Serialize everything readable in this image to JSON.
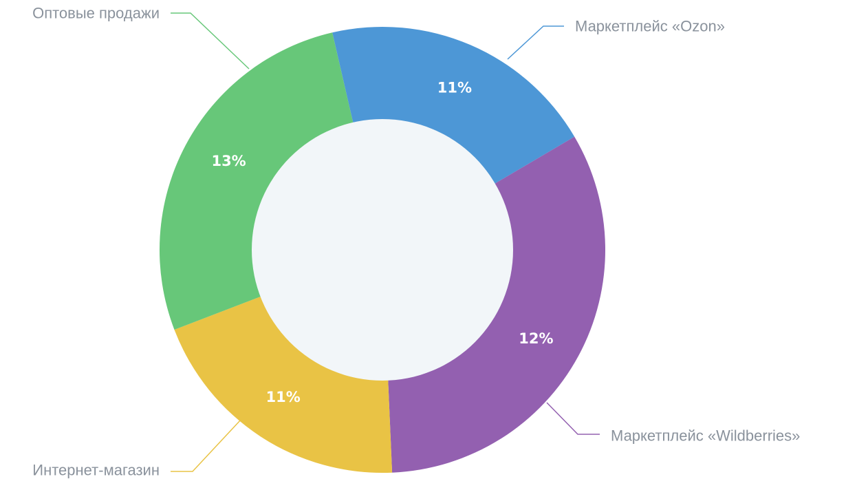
{
  "chart_data": {
    "type": "pie",
    "variant": "donut",
    "slices": [
      {
        "name": "Маркетплейс «Ozon»",
        "label": "11%",
        "value": 11,
        "color": "#4d97d6"
      },
      {
        "name": "Маркетплейс «Wildberries»",
        "label": "12%",
        "value": 12,
        "color": "#9360b0"
      },
      {
        "name": "Интернет-магазин",
        "label": "11%",
        "value": 11,
        "color": "#e9c345"
      },
      {
        "name": "Оптовые продажи",
        "label": "13%",
        "value": 13,
        "color": "#67c779"
      }
    ],
    "hole_color": "#f2f6f9"
  }
}
